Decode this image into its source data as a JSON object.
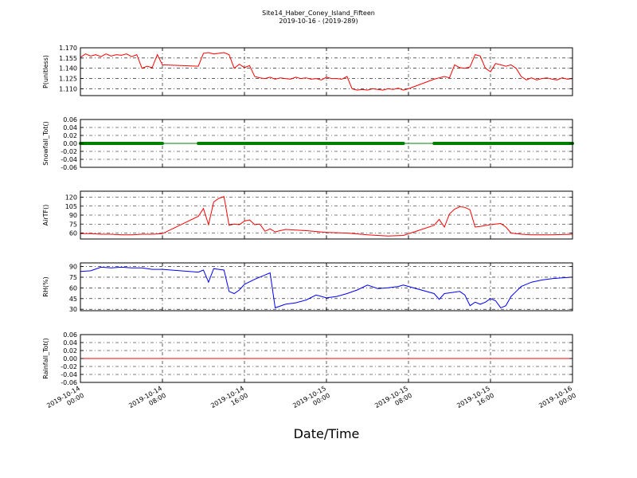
{
  "figure": {
    "title_line1": "Site14_Haber_Coney_Island_Fifteen",
    "title_line2": "2019-10-16 - (2019-289)",
    "xlabel": "Date/Time",
    "x_tick_labels": [
      [
        "2019-10-14",
        "00:00"
      ],
      [
        "2019-10-14",
        "08:00"
      ],
      [
        "2019-10-14",
        "16:00"
      ],
      [
        "2019-10-15",
        "00:00"
      ],
      [
        "2019-10-15",
        "08:00"
      ],
      [
        "2019-10-15",
        "16:00"
      ],
      [
        "2019-10-16",
        "00:00"
      ]
    ]
  },
  "chart_data": [
    {
      "type": "line",
      "ylabel": "P(unitless)",
      "ylim": [
        1.1,
        1.17
      ],
      "yticks": [
        1.11,
        1.125,
        1.14,
        1.155,
        1.17
      ],
      "ytick_labels": [
        "1.110",
        "1.125",
        "1.140",
        "1.155",
        "1.170"
      ],
      "xlim": [
        0,
        48
      ],
      "grid": true,
      "color": "#ff0000",
      "marker": "none",
      "x": [
        0,
        0.5,
        1,
        1.5,
        2,
        2.5,
        3,
        3.5,
        4,
        4.5,
        5,
        5.5,
        6,
        6.5,
        7,
        7.5,
        8,
        11.5,
        12,
        12.5,
        13,
        13.5,
        14,
        14.5,
        15,
        15.5,
        16,
        16.5,
        17,
        17.5,
        18,
        18.5,
        19,
        19.5,
        20,
        20.5,
        21,
        21.5,
        22,
        22.5,
        23,
        23.5,
        24,
        24.5,
        25,
        25.5,
        26,
        26.5,
        27,
        27.5,
        28,
        28.5,
        29,
        29.5,
        30,
        30.5,
        31,
        31.5,
        32,
        34.5,
        35,
        35.5,
        36,
        36.5,
        37,
        37.5,
        38,
        38.5,
        39,
        39.5,
        40,
        40.5,
        41,
        41.5,
        42,
        42.5,
        43,
        43.5,
        44,
        44.5,
        45,
        45.5,
        46,
        46.5,
        47,
        47.5,
        48
      ],
      "y": [
        1.156,
        1.161,
        1.158,
        1.16,
        1.157,
        1.161,
        1.158,
        1.16,
        1.159,
        1.161,
        1.157,
        1.16,
        1.14,
        1.143,
        1.141,
        1.16,
        1.145,
        1.143,
        1.162,
        1.163,
        1.161,
        1.162,
        1.163,
        1.16,
        1.14,
        1.146,
        1.141,
        1.144,
        1.128,
        1.126,
        1.125,
        1.127,
        1.124,
        1.126,
        1.125,
        1.124,
        1.127,
        1.125,
        1.126,
        1.124,
        1.125,
        1.123,
        1.127,
        1.125,
        1.125,
        1.124,
        1.128,
        1.11,
        1.108,
        1.109,
        1.108,
        1.11,
        1.109,
        1.108,
        1.11,
        1.109,
        1.111,
        1.108,
        1.11,
        1.124,
        1.126,
        1.128,
        1.126,
        1.145,
        1.141,
        1.14,
        1.142,
        1.16,
        1.158,
        1.14,
        1.135,
        1.147,
        1.145,
        1.143,
        1.145,
        1.14,
        1.128,
        1.123,
        1.126,
        1.123,
        1.125,
        1.126,
        1.124,
        1.123,
        1.126,
        1.124,
        1.125
      ]
    },
    {
      "type": "line",
      "ylabel": "Snowfall_Tot()",
      "ylim": [
        -0.06,
        0.06
      ],
      "yticks": [
        -0.06,
        -0.04,
        -0.02,
        0.0,
        0.02,
        0.04,
        0.06
      ],
      "ytick_labels": [
        "-0.06",
        "-0.04",
        "-0.02",
        "0.00",
        "0.02",
        "0.04",
        "0.06"
      ],
      "xlim": [
        0,
        48
      ],
      "grid": true,
      "color": "#008000",
      "marker": "dot",
      "x": [
        0,
        8,
        11.5,
        31.5,
        34.5,
        48
      ],
      "y": [
        0,
        0,
        0,
        0,
        0,
        0
      ],
      "marker_segments": [
        [
          0,
          8
        ],
        [
          11.5,
          31.5
        ],
        [
          34.5,
          48
        ]
      ]
    },
    {
      "type": "line",
      "ylabel": "AirTF()",
      "ylim": [
        50,
        130
      ],
      "yticks": [
        60,
        75,
        90,
        105,
        120
      ],
      "ytick_labels": [
        "60",
        "75",
        "90",
        "105",
        "120"
      ],
      "xlim": [
        0,
        48
      ],
      "grid": true,
      "color": "#ff0000",
      "marker": "none",
      "x": [
        0,
        1,
        2,
        3,
        4,
        5,
        6,
        7,
        8,
        11.5,
        12,
        12.5,
        13,
        13.5,
        14,
        14.5,
        15,
        15.5,
        16,
        16.5,
        17,
        17.5,
        18,
        18.5,
        19,
        20,
        22,
        24,
        26,
        28,
        30,
        31.5,
        34.5,
        35,
        35.5,
        36,
        36.5,
        37,
        37.5,
        38,
        38.5,
        39,
        40,
        41,
        41.5,
        42,
        43,
        44,
        46,
        48
      ],
      "y": [
        59,
        59,
        58,
        58,
        57,
        57,
        58,
        58,
        59,
        88,
        101,
        74,
        112,
        118,
        121,
        73,
        75,
        74,
        80,
        82,
        74,
        75,
        63,
        67,
        62,
        66,
        64,
        61,
        60,
        57,
        55,
        56,
        73,
        83,
        70,
        92,
        100,
        104,
        103,
        99,
        70,
        71,
        74,
        76,
        70,
        60,
        58,
        57,
        57,
        58
      ]
    },
    {
      "type": "line",
      "ylabel": "RH(%)",
      "ylim": [
        28,
        95
      ],
      "yticks": [
        30,
        45,
        60,
        75,
        90
      ],
      "ytick_labels": [
        "30",
        "45",
        "60",
        "75",
        "90"
      ],
      "xlim": [
        0,
        48
      ],
      "grid": true,
      "color": "#0000ff",
      "marker": "none",
      "x": [
        0,
        1,
        2,
        3,
        4,
        5,
        6,
        7,
        8,
        11.5,
        12,
        12.5,
        13,
        13.5,
        14,
        14.5,
        15,
        15.5,
        16,
        17,
        18,
        18.5,
        19,
        20,
        21,
        22,
        23,
        24,
        25,
        26,
        27,
        28,
        29,
        30,
        31,
        31.5,
        34.5,
        35,
        35.5,
        36,
        37,
        37.5,
        38,
        38.5,
        39,
        39.5,
        40,
        40.5,
        41,
        41.5,
        42,
        42.5,
        43,
        44,
        45,
        46,
        47,
        48
      ],
      "y": [
        83,
        84,
        89,
        88,
        89,
        88,
        88,
        86,
        86,
        82,
        85,
        68,
        87,
        86,
        85,
        55,
        52,
        57,
        65,
        72,
        78,
        81,
        32,
        37,
        39,
        43,
        50,
        46,
        48,
        52,
        57,
        64,
        59,
        60,
        62,
        64,
        52,
        44,
        52,
        53,
        55,
        50,
        35,
        40,
        37,
        40,
        45,
        42,
        32,
        35,
        48,
        55,
        62,
        68,
        71,
        73,
        74,
        75
      ]
    },
    {
      "type": "line",
      "ylabel": "Rainfall_Tot()",
      "ylim": [
        -0.06,
        0.06
      ],
      "yticks": [
        -0.06,
        -0.04,
        -0.02,
        0.0,
        0.02,
        0.04,
        0.06
      ],
      "ytick_labels": [
        "-0.06",
        "-0.04",
        "-0.02",
        "0.00",
        "0.02",
        "0.04",
        "0.06"
      ],
      "xlim": [
        0,
        48
      ],
      "grid": true,
      "color": "#ff0000",
      "marker": "none",
      "x": [
        0,
        48
      ],
      "y": [
        0,
        0
      ]
    }
  ]
}
